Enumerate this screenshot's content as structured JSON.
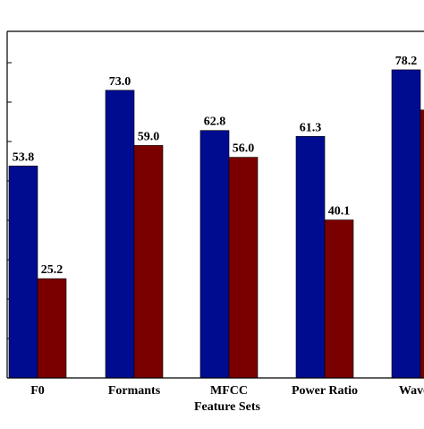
{
  "chart_data": {
    "type": "bar",
    "title": "",
    "xlabel": "Feature Sets",
    "ylabel": "",
    "categories": [
      "F0",
      "Formants",
      "MFCC",
      "Power Ratio",
      "Wavelet"
    ],
    "series": [
      {
        "color": "#000c8f",
        "values": [
          53.8,
          73.0,
          62.8,
          61.3,
          78.2
        ]
      },
      {
        "color": "#7a0000",
        "values": [
          25.2,
          59.0,
          56.0,
          40.1,
          68.0
        ]
      }
    ],
    "data_labels": [
      [
        "53.8",
        "73.0",
        "62.8",
        "61.3",
        "78.2"
      ],
      [
        "25.2",
        "59.0",
        "56.0",
        "40.1",
        ""
      ]
    ],
    "ylim": [
      0,
      88
    ],
    "grid": false,
    "y_ticks": [
      10,
      20,
      30,
      40,
      50,
      60,
      70,
      80
    ]
  }
}
